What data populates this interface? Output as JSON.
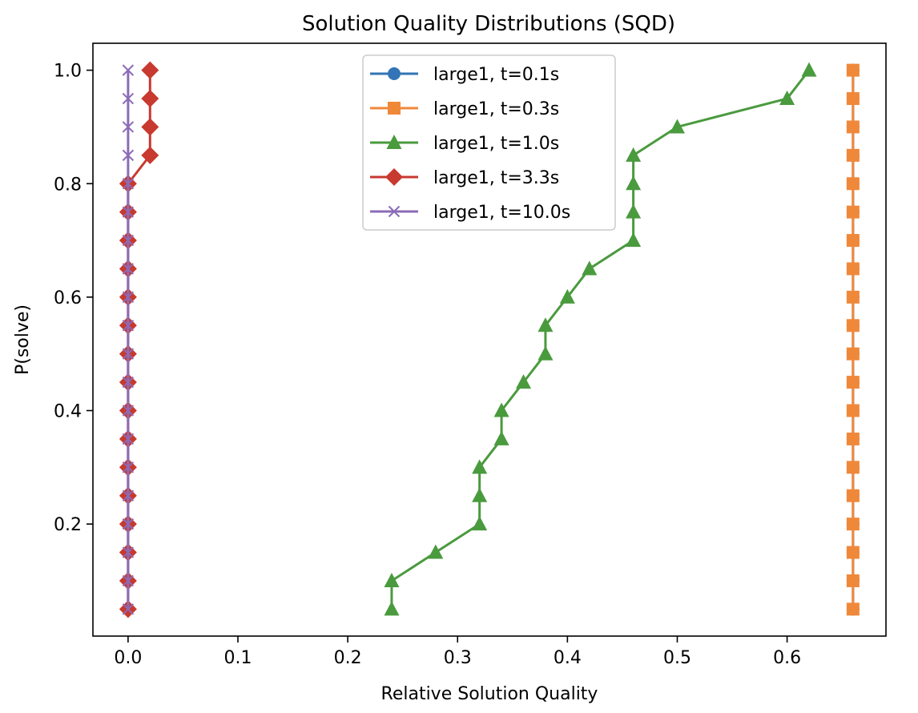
{
  "chart_data": {
    "type": "line",
    "title": "Solution Quality Distributions (SQD)",
    "xlabel": "Relative Solution Quality",
    "ylabel": "P(solve)",
    "xlim": [
      -0.032,
      0.69
    ],
    "ylim": [
      0.0025,
      1.0475
    ],
    "xticks": [
      0.0,
      0.1,
      0.2,
      0.3,
      0.4,
      0.5,
      0.6
    ],
    "xtick_labels": [
      "0.0",
      "0.1",
      "0.2",
      "0.3",
      "0.4",
      "0.5",
      "0.6"
    ],
    "yticks": [
      0.2,
      0.4,
      0.6,
      0.8,
      1.0
    ],
    "ytick_labels": [
      "0.2",
      "0.4",
      "0.6",
      "0.8",
      "1.0"
    ],
    "grid": false,
    "legend_position": "top-center",
    "series": [
      {
        "name": "large1, t=0.1s",
        "color": "#3274b5",
        "marker": "circle",
        "x": [
          0.66,
          0.66,
          0.66,
          0.66,
          0.66,
          0.66,
          0.66,
          0.66,
          0.66,
          0.66,
          0.66,
          0.66,
          0.66,
          0.66,
          0.66,
          0.66,
          0.66,
          0.66,
          0.66,
          0.66
        ],
        "y": [
          0.05,
          0.1,
          0.15,
          0.2,
          0.25,
          0.3,
          0.35,
          0.4,
          0.45,
          0.5,
          0.55,
          0.6,
          0.65,
          0.7,
          0.75,
          0.8,
          0.85,
          0.9,
          0.95,
          1.0
        ]
      },
      {
        "name": "large1, t=0.3s",
        "color": "#f0883a",
        "marker": "square",
        "x": [
          0.66,
          0.66,
          0.66,
          0.66,
          0.66,
          0.66,
          0.66,
          0.66,
          0.66,
          0.66,
          0.66,
          0.66,
          0.66,
          0.66,
          0.66,
          0.66,
          0.66,
          0.66,
          0.66,
          0.66
        ],
        "y": [
          0.05,
          0.1,
          0.15,
          0.2,
          0.25,
          0.3,
          0.35,
          0.4,
          0.45,
          0.5,
          0.55,
          0.6,
          0.65,
          0.7,
          0.75,
          0.8,
          0.85,
          0.9,
          0.95,
          1.0
        ]
      },
      {
        "name": "large1, t=1.0s",
        "color": "#4a9a3e",
        "marker": "triangle",
        "x": [
          0.24,
          0.24,
          0.28,
          0.32,
          0.32,
          0.32,
          0.34,
          0.34,
          0.36,
          0.38,
          0.38,
          0.4,
          0.42,
          0.46,
          0.46,
          0.46,
          0.46,
          0.5,
          0.6,
          0.62
        ],
        "y": [
          0.05,
          0.1,
          0.15,
          0.2,
          0.25,
          0.3,
          0.35,
          0.4,
          0.45,
          0.5,
          0.55,
          0.6,
          0.65,
          0.7,
          0.75,
          0.8,
          0.85,
          0.9,
          0.95,
          1.0
        ]
      },
      {
        "name": "large1, t=3.3s",
        "color": "#c8392f",
        "marker": "diamond",
        "x": [
          0,
          0,
          0,
          0,
          0,
          0,
          0,
          0,
          0,
          0,
          0,
          0,
          0,
          0,
          0,
          0,
          0.02,
          0.02,
          0.02,
          0.02
        ],
        "y": [
          0.05,
          0.1,
          0.15,
          0.2,
          0.25,
          0.3,
          0.35,
          0.4,
          0.45,
          0.5,
          0.55,
          0.6,
          0.65,
          0.7,
          0.75,
          0.8,
          0.85,
          0.9,
          0.95,
          1.0
        ]
      },
      {
        "name": "large1, t=10.0s",
        "color": "#8b6bb8",
        "marker": "x",
        "x": [
          0,
          0,
          0,
          0,
          0,
          0,
          0,
          0,
          0,
          0,
          0,
          0,
          0,
          0,
          0,
          0,
          0,
          0,
          0,
          0
        ],
        "y": [
          0.05,
          0.1,
          0.15,
          0.2,
          0.25,
          0.3,
          0.35,
          0.4,
          0.45,
          0.5,
          0.55,
          0.6,
          0.65,
          0.7,
          0.75,
          0.8,
          0.85,
          0.9,
          0.95,
          1.0
        ]
      }
    ]
  }
}
